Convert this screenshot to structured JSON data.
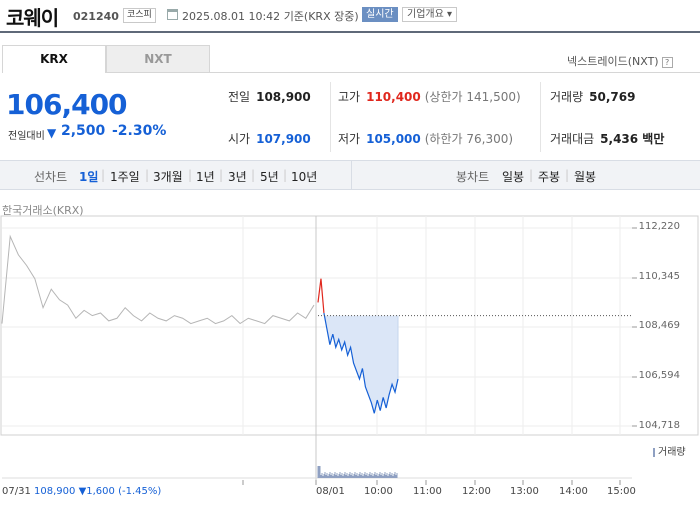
{
  "header": {
    "name": "코웨이",
    "code": "021240",
    "market_badge": "코스피",
    "datetime": "2025.08.01 10:42",
    "basis": "기준(KRX 장중)",
    "realtime": "실시간",
    "company_btn": "기업개요"
  },
  "tabs": {
    "krx": "KRX",
    "nxt": "NXT"
  },
  "nxt_link": "넥스트레이드(NXT)",
  "price": {
    "current": "106,400",
    "change_label": "전일대비",
    "change": "2,500",
    "change_pct": "-2.30%"
  },
  "quote": {
    "prev_label": "전일",
    "prev": "108,900",
    "high_label": "고가",
    "high": "110,400",
    "upper_limit": "(상한가 141,500)",
    "volume_label": "거래량",
    "volume": "50,769",
    "open_label": "시가",
    "open": "107,900",
    "low_label": "저가",
    "low": "105,000",
    "lower_limit": "(하한가 76,300)",
    "amount_label": "거래대금",
    "amount": "5,436 백만"
  },
  "chart_types": {
    "line_label": "선차트",
    "periods": [
      "1일",
      "1주일",
      "3개월",
      "1년",
      "3년",
      "5년",
      "10년"
    ],
    "candle_label": "봉차트",
    "candles": [
      "일봉",
      "주봉",
      "월봉"
    ]
  },
  "colors": {
    "up": "#e0271d",
    "down": "#1560d6",
    "prev_day": "#b5b5b5",
    "area": "#dbe6f7"
  },
  "chart_data": {
    "type": "line",
    "title": "한국거래소(KRX)",
    "ylim": [
      104718,
      112220
    ],
    "y_ticks": [
      "112,220",
      "110,345",
      "108,469",
      "106,594",
      "104,718"
    ],
    "x_ticks": [
      "07/31",
      "08/01",
      "10:00",
      "11:00",
      "12:00",
      "13:00",
      "14:00",
      "15:00"
    ],
    "prev_close": 108900,
    "series": [
      {
        "values": [
          108600,
          111900,
          111200,
          110800,
          110300,
          109200,
          109900,
          109500,
          109300,
          108800,
          109100,
          108900,
          109000,
          108700,
          108800,
          109200,
          108900,
          108700,
          109000,
          108800,
          108700,
          108900,
          108800,
          108600,
          108700,
          108800,
          108600,
          108700,
          108900,
          108600,
          108800,
          108700,
          108600,
          108900,
          108800,
          108700,
          109000,
          108800,
          109300
        ]
      },
      {
        "values": [
          109400,
          110300,
          109000,
          108400,
          107800,
          108200,
          107700,
          108000,
          107600,
          107900,
          107400,
          107700,
          107100,
          106800,
          106500,
          106900,
          106200,
          105900,
          105600,
          105200,
          105700,
          105300,
          105800,
          105400,
          105900,
          106300,
          106000,
          106500
        ]
      }
    ],
    "prev_day_summary": {
      "date": "07/31",
      "close": "108,900",
      "change": "1,600",
      "pct": "(-1.45%)"
    },
    "volume_label": "거래량"
  }
}
